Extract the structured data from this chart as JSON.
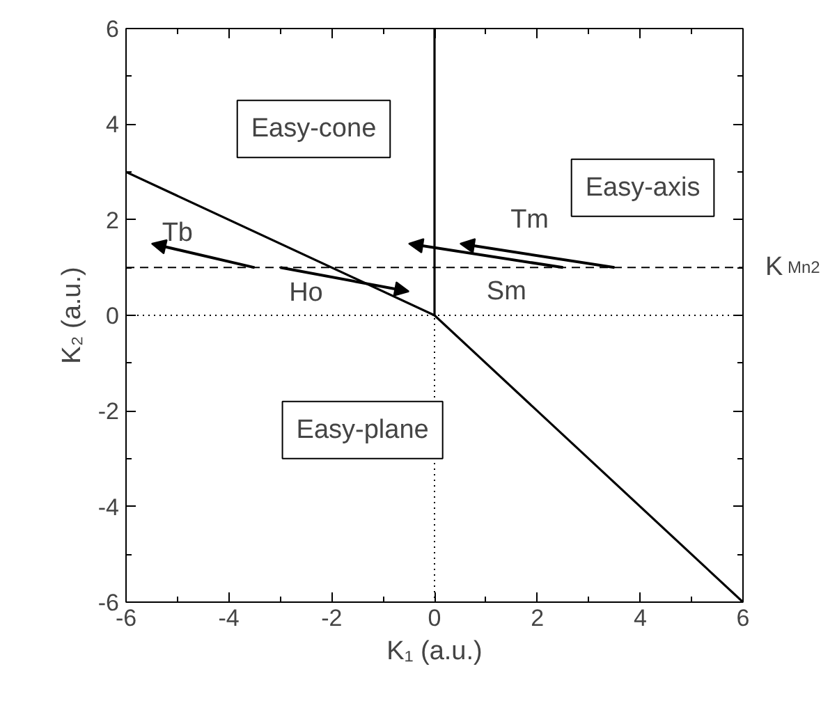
{
  "chart_data": {
    "type": "line",
    "xlabel": "K₁ (a.u.)",
    "ylabel": "K₂ (a.u.)",
    "xlim": [
      -6,
      6
    ],
    "ylim": [
      -6,
      6
    ],
    "xticks": [
      -6,
      {
        "value": -5,
        "label": null
      },
      -4,
      {
        "value": -3,
        "label": null
      },
      -2,
      {
        "value": -1,
        "label": null
      },
      0,
      {
        "value": 1,
        "label": null
      },
      2,
      {
        "value": 3,
        "label": null
      },
      4,
      {
        "value": 5,
        "label": null
      },
      6
    ],
    "yticks": [
      -6,
      {
        "value": -5,
        "label": null
      },
      -4,
      {
        "value": -3,
        "label": null
      },
      -2,
      {
        "value": -1,
        "label": null
      },
      0,
      {
        "value": 1,
        "label": null
      },
      2,
      {
        "value": 3,
        "label": null
      },
      4,
      {
        "value": 5,
        "label": null
      },
      6
    ],
    "grid": false,
    "marker": "none",
    "line_style": "solid",
    "series": [
      {
        "color": "#000000",
        "x": [
          -6,
          0,
          6
        ],
        "values": [
          3,
          0,
          -6
        ]
      },
      {
        "color": "#000000",
        "x": [
          0,
          0
        ],
        "values": [
          0,
          6
        ]
      }
    ],
    "ref_lines": [
      {
        "axis": "y",
        "value": 1,
        "label": "K$_{Mn2}$",
        "line_style": "dashed",
        "color": "#000000"
      },
      {
        "axis": "y",
        "value": 0,
        "label": null,
        "line_style": "dotted",
        "color": "#000000"
      },
      {
        "axis": "x",
        "value": 0,
        "label": null,
        "line_style": "dotted",
        "color": "#000000"
      }
    ],
    "annotations": [
      "Easy-cone",
      "Easy-axis",
      "Easy-plane",
      "Tb",
      "Ho",
      "Sm",
      "Tm"
    ]
  }
}
